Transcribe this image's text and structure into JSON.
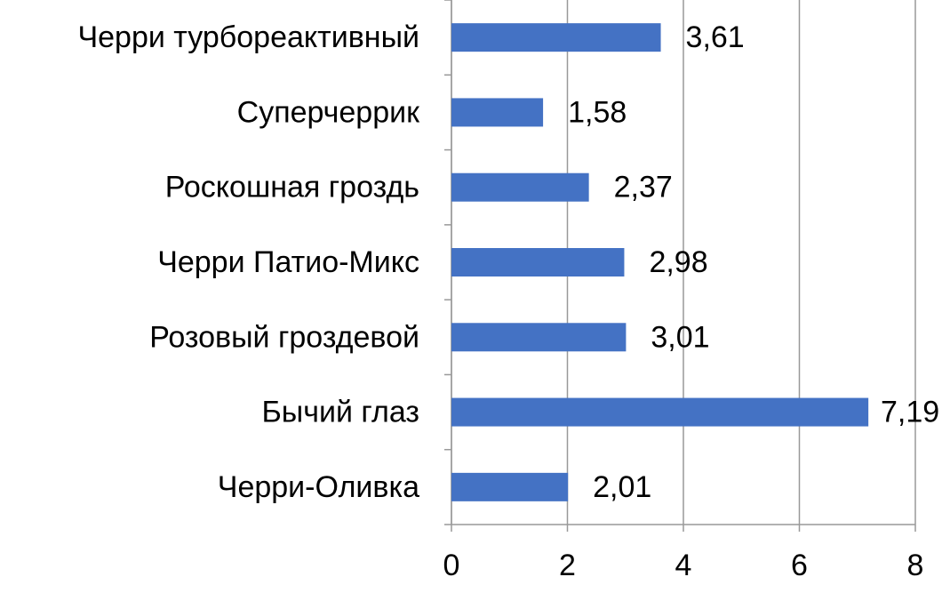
{
  "chart_data": {
    "type": "barh",
    "categories": [
      "Черри турбореактивный",
      "Суперчеррик",
      "Роскошная гроздь",
      "Черри Патио-Микс",
      "Розовый гроздевой",
      "Бычий глаз",
      "Черри-Оливка"
    ],
    "values": [
      3.61,
      1.58,
      2.37,
      2.98,
      3.01,
      7.19,
      2.01
    ],
    "value_labels": [
      "3,61",
      "1,58",
      "2,37",
      "2,98",
      "3,01",
      "7,19",
      "2,01"
    ],
    "color": "#4472c4",
    "xlim": [
      0,
      8
    ],
    "xticks": [
      0,
      2,
      4,
      6,
      8
    ],
    "grid": true
  }
}
